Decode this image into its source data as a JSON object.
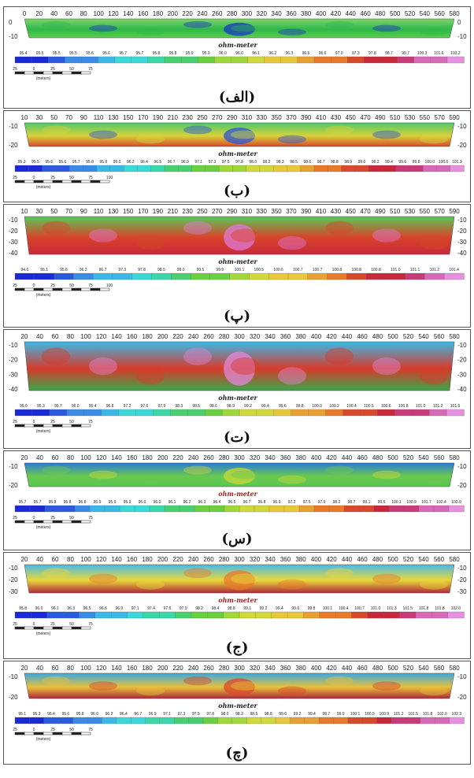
{
  "unit_label": "ohm-meter",
  "scale_label": "(meters)",
  "scale_ticks": [
    "25",
    "0",
    "25",
    "50",
    "75"
  ],
  "scale_ticks_100": [
    "25",
    "0",
    "25",
    "50",
    "75",
    "100"
  ],
  "panels": [
    {
      "label": "(الف)",
      "x_ticks": [
        "0",
        "20",
        "40",
        "60",
        "80",
        "100",
        "120",
        "140",
        "160",
        "180",
        "200",
        "220",
        "240",
        "260",
        "280",
        "300",
        "320",
        "340",
        "360",
        "380",
        "400",
        "420",
        "440",
        "460",
        "480",
        "500",
        "520",
        "540",
        "560",
        "580"
      ],
      "depth_ticks": [
        "0",
        "-10"
      ],
      "colorbar": [
        "95.4",
        "95.5",
        "95.5",
        "95.5",
        "95.6",
        "95.6",
        "95.7",
        "95.7",
        "95.8",
        "95.8",
        "95.9",
        "95.9",
        "96.0",
        "96.0",
        "96.1",
        "96.2",
        "96.3",
        "96.5",
        "96.6",
        "97.0",
        "97.3",
        "97.8",
        "98.7",
        "99.7",
        "100.3",
        "101.6",
        "103.2"
      ],
      "colors": {
        "top": "#7ed36a",
        "mid": "#2fb84a",
        "bottom": "#5ad04a",
        "spot": "#1a35c8"
      }
    },
    {
      "label": "(ب)",
      "x_ticks": [
        "10",
        "30",
        "50",
        "70",
        "90",
        "110",
        "130",
        "150",
        "170",
        "190",
        "210",
        "230",
        "250",
        "270",
        "290",
        "310",
        "330",
        "350",
        "370",
        "390",
        "410",
        "430",
        "450",
        "470",
        "490",
        "510",
        "530",
        "550",
        "570",
        "590"
      ],
      "depth_ticks": [
        "-10",
        "-20"
      ],
      "colorbar": [
        "95.3",
        "95.5",
        "95.6",
        "95.6",
        "95.7",
        "95.8",
        "95.9",
        "96.0",
        "96.2",
        "96.4",
        "96.5",
        "96.7",
        "96.9",
        "97.1",
        "97.3",
        "97.5",
        "97.8",
        "98.0",
        "98.2",
        "98.3",
        "98.5",
        "98.6",
        "98.7",
        "98.8",
        "98.9",
        "99.0",
        "99.2",
        "99.4",
        "99.6",
        "99.8",
        "100.0",
        "100.6",
        "101.3"
      ],
      "colors": {
        "top": "#4ec86a",
        "mid": "#d8d23a",
        "bottom": "#d84a2a",
        "spot": "#2a55d8"
      }
    },
    {
      "label": "(پ)",
      "x_ticks": [
        "10",
        "30",
        "50",
        "70",
        "90",
        "110",
        "130",
        "150",
        "170",
        "190",
        "210",
        "230",
        "250",
        "270",
        "290",
        "310",
        "330",
        "350",
        "370",
        "390",
        "410",
        "430",
        "450",
        "470",
        "490",
        "510",
        "530",
        "550",
        "570",
        "590"
      ],
      "depth_ticks": [
        "-10",
        "-20",
        "-30",
        "-40"
      ],
      "colorbar": [
        "94.6",
        "95.1",
        "95.6",
        "96.2",
        "96.7",
        "97.3",
        "97.8",
        "98.5",
        "99.0",
        "99.5",
        "99.9",
        "100.1",
        "100.5",
        "100.6",
        "100.7",
        "100.7",
        "100.8",
        "100.8",
        "100.8",
        "101.0",
        "101.1",
        "101.2",
        "101.4"
      ],
      "colors": {
        "top": "#5ac85a",
        "mid": "#d8442a",
        "bottom": "#c8283a",
        "spot": "#e07ad8"
      }
    },
    {
      "label": "(ت)",
      "x_ticks": [
        "20",
        "40",
        "60",
        "80",
        "100",
        "120",
        "140",
        "160",
        "180",
        "200",
        "220",
        "240",
        "260",
        "280",
        "300",
        "320",
        "340",
        "360",
        "380",
        "400",
        "420",
        "440",
        "460",
        "480",
        "500",
        "520",
        "540",
        "560",
        "580"
      ],
      "depth_ticks": [
        "-10",
        "-20",
        "-30",
        "-40"
      ],
      "colorbar": [
        "95.0",
        "95.3",
        "95.7",
        "96.0",
        "96.4",
        "96.8",
        "97.2",
        "97.6",
        "97.9",
        "98.3",
        "98.5",
        "98.6",
        "98.9",
        "99.2",
        "99.4",
        "99.6",
        "99.8",
        "100.0",
        "100.2",
        "100.4",
        "100.5",
        "100.6",
        "100.8",
        "101.0",
        "101.2",
        "101.5"
      ],
      "colors": {
        "top": "#3ab8e8",
        "mid": "#d83a2a",
        "bottom": "#3aa84a",
        "spot": "#e088d8"
      }
    },
    {
      "label": "(س)",
      "x_ticks": [
        "20",
        "40",
        "60",
        "80",
        "100",
        "120",
        "140",
        "160",
        "180",
        "200",
        "220",
        "240",
        "260",
        "280",
        "300",
        "320",
        "340",
        "360",
        "380",
        "400",
        "420",
        "440",
        "460",
        "480",
        "500",
        "520",
        "540",
        "560",
        "580"
      ],
      "depth_ticks": [
        "-10",
        "-20"
      ],
      "colorbar": [
        "95.7",
        "95.7",
        "95.8",
        "95.8",
        "95.8",
        "95.9",
        "95.9",
        "95.9",
        "96.0",
        "96.0",
        "96.1",
        "96.2",
        "96.3",
        "96.4",
        "96.5",
        "96.7",
        "96.8",
        "96.9",
        "97.2",
        "97.5",
        "97.9",
        "98.2",
        "98.7",
        "99.1",
        "99.6",
        "100.1",
        "100.9",
        "101.7",
        "102.4",
        "103.0"
      ],
      "colors": {
        "top": "#2a7ad8",
        "mid": "#6ac850",
        "bottom": "#58c850",
        "spot": "#c8d83a"
      }
    },
    {
      "label": "(ج)",
      "x_ticks": [
        "20",
        "40",
        "60",
        "80",
        "100",
        "120",
        "140",
        "160",
        "180",
        "200",
        "220",
        "240",
        "260",
        "280",
        "300",
        "320",
        "340",
        "360",
        "380",
        "400",
        "420",
        "440",
        "460",
        "480",
        "500",
        "520",
        "540",
        "560",
        "580"
      ],
      "depth_ticks": [
        "-10",
        "-20",
        "-30"
      ],
      "colorbar": [
        "95.8",
        "96.0",
        "96.1",
        "96.3",
        "96.5",
        "96.6",
        "96.9",
        "97.1",
        "97.4",
        "97.6",
        "97.9",
        "98.2",
        "98.4",
        "98.8",
        "99.1",
        "99.2",
        "99.4",
        "99.6",
        "99.8",
        "100.1",
        "100.4",
        "100.7",
        "101.0",
        "101.3",
        "101.5",
        "101.8",
        "101.8",
        "102.0"
      ],
      "colors": {
        "top": "#4ab8e8",
        "mid": "#e8d83a",
        "bottom": "#b02a3a",
        "spot": "#e87a2a"
      }
    },
    {
      "label": "(چ)",
      "x_ticks": [
        "20",
        "40",
        "60",
        "80",
        "100",
        "120",
        "140",
        "160",
        "180",
        "200",
        "220",
        "240",
        "260",
        "280",
        "300",
        "320",
        "340",
        "360",
        "380",
        "400",
        "420",
        "440",
        "460",
        "480",
        "500",
        "520",
        "540",
        "560",
        "580"
      ],
      "depth_ticks": [
        "-10",
        "-20"
      ],
      "colorbar": [
        "95.1",
        "95.3",
        "95.4",
        "95.6",
        "95.8",
        "96.0",
        "96.2",
        "96.4",
        "96.7",
        "96.9",
        "97.1",
        "97.3",
        "97.5",
        "97.8",
        "98.0",
        "98.2",
        "98.5",
        "98.8",
        "99.0",
        "99.2",
        "99.4",
        "99.7",
        "99.9",
        "100.1",
        "100.5",
        "100.9",
        "101.2",
        "101.5",
        "101.8",
        "102.0",
        "102.3"
      ],
      "colors": {
        "top": "#3aa8e0",
        "mid": "#e8c03a",
        "bottom": "#b0283a",
        "spot": "#d8482a"
      }
    }
  ]
}
